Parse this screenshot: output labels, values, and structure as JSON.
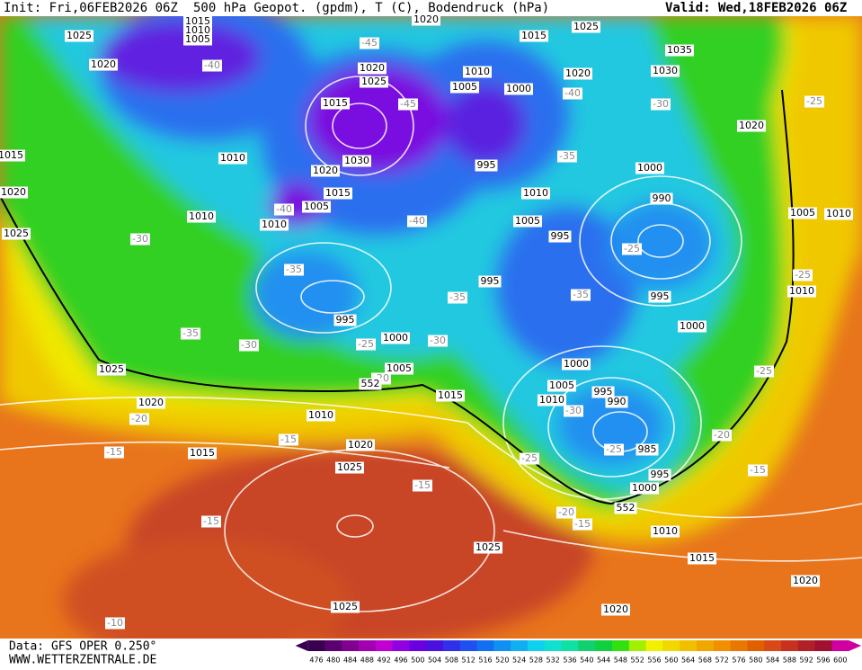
{
  "header": {
    "init": "Init: Fri,06FEB2026 06Z",
    "title": "500 hPa Geopot. (gpdm), T (C), Bodendruck (hPa)",
    "valid": "Valid: Wed,18FEB2026 06Z"
  },
  "footer": {
    "data": "Data: GFS OPER 0.250°",
    "site": "WWW.WETTERZENTRALE.DE"
  },
  "colorbar": {
    "labels": [
      476,
      480,
      484,
      488,
      492,
      496,
      500,
      504,
      508,
      512,
      516,
      520,
      524,
      528,
      532,
      536,
      540,
      544,
      548,
      552,
      556,
      560,
      564,
      568,
      572,
      576,
      580,
      584,
      588,
      592,
      596,
      600
    ],
    "colors": [
      "#3a0050",
      "#5a0070",
      "#800090",
      "#a000b0",
      "#c000d0",
      "#9000e0",
      "#6a00e0",
      "#4a10e0",
      "#3030e8",
      "#2050f0",
      "#1070f0",
      "#1090f0",
      "#10b0f0",
      "#10d0f0",
      "#10e0d0",
      "#10e0a0",
      "#10d070",
      "#10d040",
      "#30e010",
      "#a0f000",
      "#f0f000",
      "#f0d800",
      "#f0c000",
      "#f0a800",
      "#f09000",
      "#e87800",
      "#e06000",
      "#d84818",
      "#c83020",
      "#b02028",
      "#a01030",
      "#d000a0"
    ]
  },
  "isobar_labels": [
    "1015",
    "1010",
    "1005",
    "1020",
    "1025",
    "1020",
    "1010",
    "1010",
    "1025",
    "1020",
    "1015",
    "1015",
    "1020",
    "1025",
    "1030",
    "1020",
    "1015",
    "1005",
    "1010",
    "995",
    "1000",
    "1005",
    "1025",
    "1020",
    "1010",
    "1015",
    "1015",
    "1020",
    "1025",
    "1025",
    "1025",
    "1020",
    "1010",
    "1015",
    "1020",
    "1010",
    "1005",
    "1000",
    "995",
    "1015",
    "1025",
    "1020",
    "1035",
    "1030",
    "1020",
    "1000",
    "990",
    "1010",
    "1005",
    "995",
    "995",
    "995",
    "1000",
    "1005",
    "1010",
    "1010",
    "1000",
    "1005",
    "1010",
    "995",
    "990",
    "985",
    "995",
    "1000"
  ],
  "temperature_labels": [
    "-40",
    "-45",
    "-45",
    "-40",
    "-30",
    "-25",
    "-35",
    "-40",
    "-40",
    "-30",
    "-35",
    "-25",
    "-35",
    "-35",
    "-35",
    "-30",
    "-25",
    "-30",
    "-20",
    "-25",
    "-20",
    "-15",
    "-15",
    "-20",
    "-15",
    "-25",
    "-15",
    "-20",
    "-15",
    "-15",
    "-10",
    "-30",
    "-25",
    "-25"
  ],
  "contour_labels": [
    "552",
    "552"
  ]
}
